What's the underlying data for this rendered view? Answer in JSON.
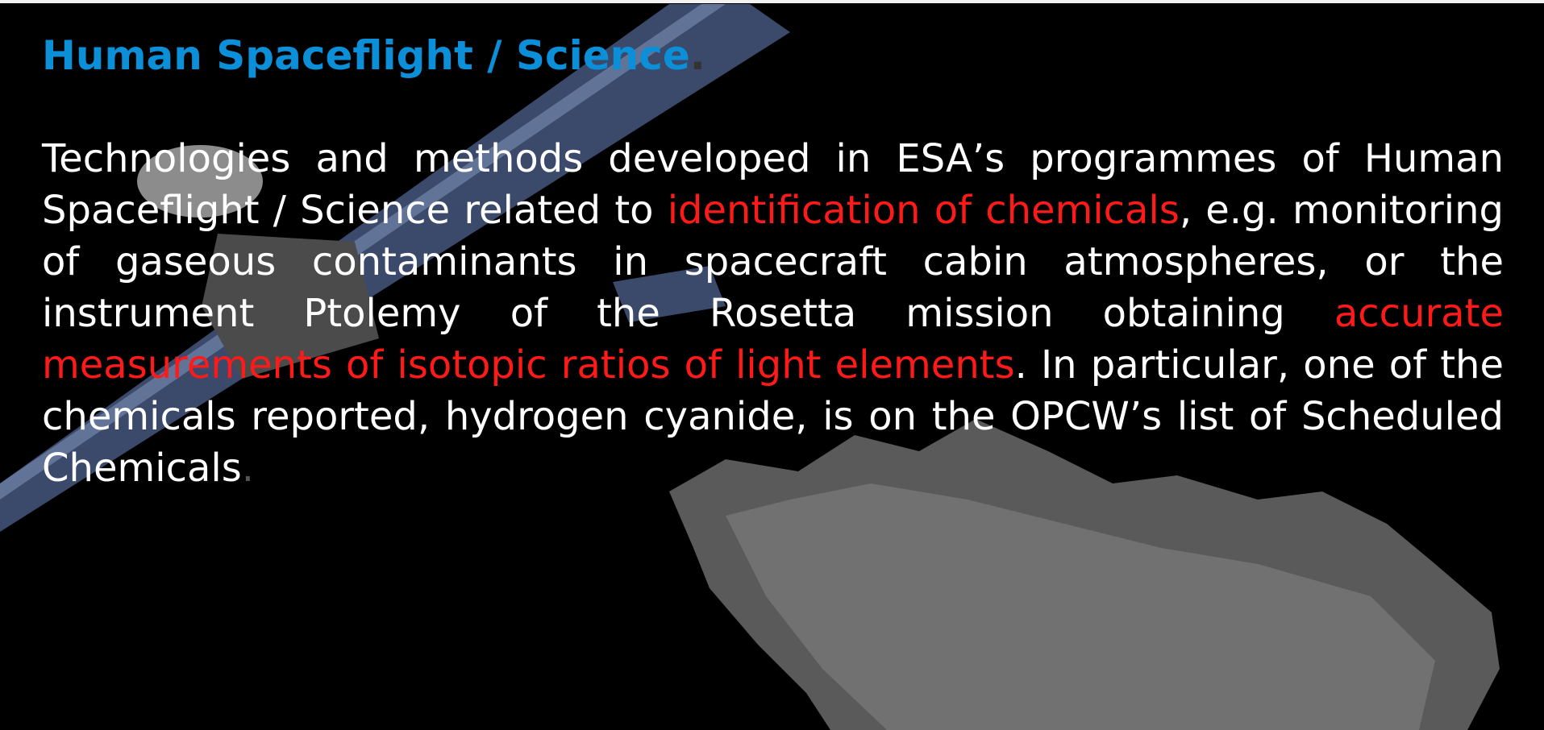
{
  "slide": {
    "title": [
      {
        "text": "Human Spaceflight / Science",
        "color": "#0b8fd8"
      },
      {
        "text": ".",
        "color": "#333333"
      }
    ],
    "body": [
      {
        "text": "Technologies and methods developed in ESA’s programmes of Human Spaceflight / Science related to ",
        "color": "#ffffff"
      },
      {
        "text": "identification of chemicals",
        "color": "#ff1a1a"
      },
      {
        "text": ", e.g. monitoring of gaseous contaminants in spacecraft cabin atmospheres, or the instrument Ptolemy of the Rosetta mission obtaining ",
        "color": "#ffffff"
      },
      {
        "text": "accurate measurements of isotopic ratios of light elements",
        "color": "#ff1a1a"
      },
      {
        "text": ". In particular, one of the chemicals reported, hydrogen cyanide, is on the OPCW’s list of Scheduled Chemicals",
        "color": "#ffffff"
      },
      {
        "text": ".",
        "color": "#555555"
      }
    ]
  }
}
